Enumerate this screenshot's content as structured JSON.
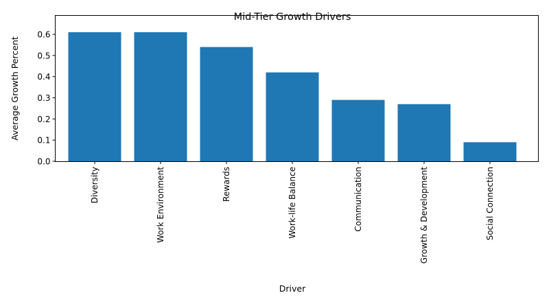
{
  "chart_data": {
    "type": "bar",
    "title": "Mid-Tier Growth Drivers",
    "xlabel": "Driver",
    "ylabel": "Average Growth Percent",
    "categories": [
      "Diversity",
      "Work Environment",
      "Rewards",
      "Work-life Balance",
      "Communication",
      "Growth & Development",
      "Social Connection"
    ],
    "values": [
      0.61,
      0.61,
      0.54,
      0.42,
      0.29,
      0.27,
      0.09
    ],
    "ylim": [
      0,
      0.64
    ],
    "yticks": [
      "0.0",
      "0.1",
      "0.2",
      "0.3",
      "0.4",
      "0.5",
      "0.6"
    ],
    "grid": false,
    "legend": null,
    "bar_color": "#1f77b4",
    "xtick_rotation": 90
  }
}
